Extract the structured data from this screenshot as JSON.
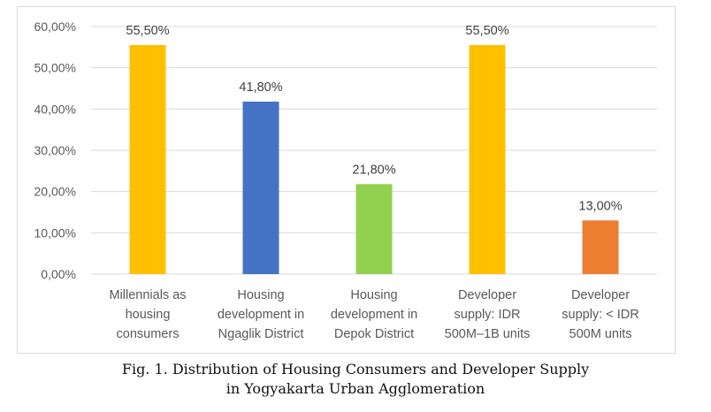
{
  "chart_data": {
    "type": "bar",
    "categories": [
      [
        "Millennials as",
        "housing",
        "consumers"
      ],
      [
        "Housing",
        "development in",
        "Ngaglik District"
      ],
      [
        "Housing",
        "development in",
        "Depok District"
      ],
      [
        "Developer",
        "supply: IDR",
        "500M–1B units"
      ],
      [
        "Developer",
        "supply: < IDR",
        "500M units"
      ]
    ],
    "values": [
      55.5,
      41.8,
      21.8,
      55.5,
      13.0
    ],
    "data_labels": [
      "55,50%",
      "41,80%",
      "21,80%",
      "55,50%",
      "13,00%"
    ],
    "colors": [
      "#ffc000",
      "#4472c4",
      "#92d050",
      "#ffc000",
      "#ed7d31"
    ],
    "ylim": [
      0,
      60
    ],
    "yticks": [
      0,
      10,
      20,
      30,
      40,
      50,
      60
    ],
    "ytick_labels": [
      "0,00%",
      "10,00%",
      "20,00%",
      "30,00%",
      "40,00%",
      "50,00%",
      "60,00%"
    ],
    "grid": true,
    "legend": "none"
  },
  "caption": {
    "line1": "Fig.  1. Distribution of Housing Consumers and Developer Supply",
    "line2": "in Yogyakarta Urban Agglomeration"
  }
}
